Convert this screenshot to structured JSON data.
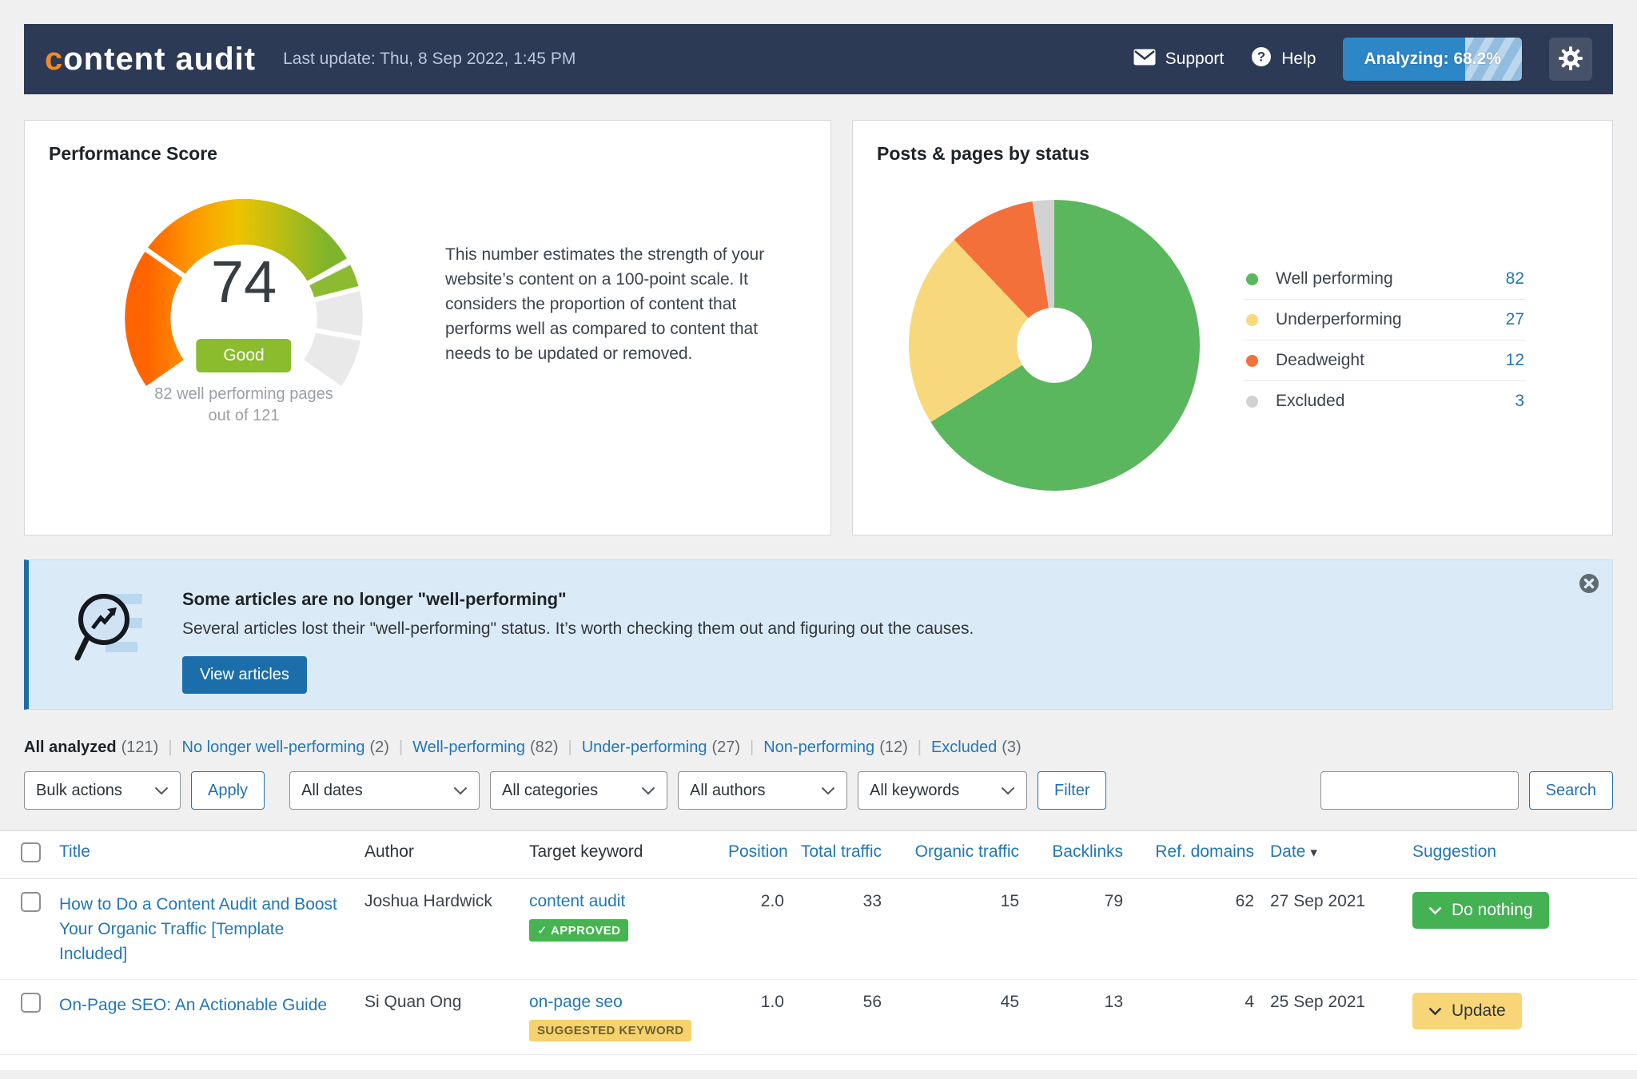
{
  "header": {
    "logo_prefix": "c",
    "logo_rest": "ontent audit",
    "last_update": "Last update: Thu, 8 Sep 2022, 1:45 PM",
    "support_label": "Support",
    "help_label": "Help",
    "analyzing_label": "Analyzing: 68.2%",
    "analyzing_percent": 68.2
  },
  "performance_card": {
    "title": "Performance Score",
    "score": "74",
    "badge": "Good",
    "caption_line1": "82 well performing pages",
    "caption_line2": "out of 121",
    "description": "This number estimates the strength of your website’s content on a 100-point scale. It considers the proportion of content that performs well as compared to content that needs to be updated or removed."
  },
  "status_card": {
    "title": "Posts & pages by status",
    "legend": [
      {
        "label": "Well performing",
        "value": "82",
        "color": "#5bb75e"
      },
      {
        "label": "Underperforming",
        "value": "27",
        "color": "#f8d87c"
      },
      {
        "label": "Deadweight",
        "value": "12",
        "color": "#f3703b"
      },
      {
        "label": "Excluded",
        "value": "3",
        "color": "#d2d2d2"
      }
    ]
  },
  "banner": {
    "title": "Some articles are no longer \"well-performing\"",
    "body": "Several articles lost their \"well-performing\" status. It’s worth checking them out and figuring out the causes.",
    "button": "View articles"
  },
  "filters": {
    "items": [
      {
        "label": "All analyzed",
        "count": "(121)",
        "active": true
      },
      {
        "label": "No longer well-performing",
        "count": "(2)"
      },
      {
        "label": "Well-performing",
        "count": "(82)"
      },
      {
        "label": "Under-performing",
        "count": "(27)"
      },
      {
        "label": "Non-performing",
        "count": "(12)"
      },
      {
        "label": "Excluded",
        "count": "(3)"
      }
    ]
  },
  "controls": {
    "bulk_actions": "Bulk actions",
    "apply": "Apply",
    "all_dates": "All dates",
    "all_categories": "All categories",
    "all_authors": "All authors",
    "all_keywords": "All keywords",
    "filter": "Filter",
    "search_button": "Search",
    "search_value": ""
  },
  "table": {
    "columns": [
      "Title",
      "Author",
      "Target keyword",
      "Position",
      "Total traffic",
      "Organic traffic",
      "Backlinks",
      "Ref. domains",
      "Date",
      "Suggestion"
    ],
    "date_sort_icon": "▾",
    "rows": [
      {
        "title": "How to Do a Content Audit and Boost Your Organic Traffic [Template Included]",
        "author": "Joshua Hardwick",
        "keyword": "content audit",
        "keyword_badge": "✓ APPROVED",
        "keyword_badge_type": "approved",
        "position": "2.0",
        "total_traffic": "33",
        "organic_traffic": "15",
        "backlinks": "79",
        "ref_domains": "62",
        "date": "27 Sep 2021",
        "suggestion": "Do nothing",
        "suggestion_type": "green"
      },
      {
        "title": "On-Page SEO: An Actionable Guide",
        "author": "Si Quan Ong",
        "keyword": "on-page seo",
        "keyword_badge": "SUGGESTED KEYWORD",
        "keyword_badge_type": "suggested",
        "position": "1.0",
        "total_traffic": "56",
        "organic_traffic": "45",
        "backlinks": "13",
        "ref_domains": "4",
        "date": "25 Sep 2021",
        "suggestion": "Update",
        "suggestion_type": "yellow"
      }
    ]
  },
  "chart_data": [
    {
      "type": "gauge",
      "title": "Performance Score",
      "value": 74,
      "min": 0,
      "max": 100,
      "rating": "Good",
      "well_performing_pages": 82,
      "total_pages": 121,
      "highlight_segment": {
        "from": 75.5,
        "to": 80
      },
      "dividers_percent": [
        28,
        74.7,
        80.3,
        90
      ],
      "arc_sweep_deg": 250
    },
    {
      "type": "pie",
      "title": "Posts & pages by status",
      "labels": [
        "Well performing",
        "Underperforming",
        "Deadweight",
        "Excluded"
      ],
      "values": [
        82,
        27,
        12,
        3
      ],
      "colors": [
        "#5bb75e",
        "#f8d87c",
        "#f3703b",
        "#d2d2d2"
      ],
      "legend_position": "right",
      "donut_hole_ratio": 0.26
    }
  ]
}
